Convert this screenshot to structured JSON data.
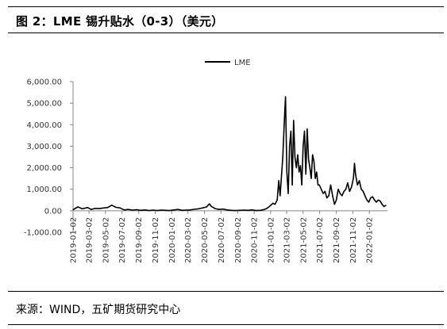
{
  "header": {
    "title": "图 2：LME 锡升贴水（0-3）（美元）"
  },
  "footer": {
    "source": "来源：WIND，五矿期货研究中心"
  },
  "chart_data": {
    "type": "line",
    "title": "",
    "xlabel": "",
    "ylabel": "",
    "ylim": [
      -1000,
      6000
    ],
    "ytick_labels": [
      "6,000.00",
      "5,000.00",
      "4,000.00",
      "3,000.00",
      "2,000.00",
      "1,000.00",
      "0.00",
      "-1,000.00"
    ],
    "ytick_values": [
      6000,
      5000,
      4000,
      3000,
      2000,
      1000,
      0,
      -1000
    ],
    "xtick_labels": [
      "2019-01-02",
      "2019-03-02",
      "2019-05-02",
      "2019-07-02",
      "2019-09-02",
      "2019-11-02",
      "2020-01-02",
      "2020-03-02",
      "2020-05-02",
      "2020-07-02",
      "2020-09-02",
      "2020-11-02",
      "2021-01-02",
      "2021-03-02",
      "2021-05-02",
      "2021-07-02",
      "2021-09-02",
      "2021-11-02",
      "2022-01-02"
    ],
    "legend": {
      "position": "top",
      "entries": [
        "LME"
      ]
    },
    "grid": false,
    "series": [
      {
        "name": "LME",
        "color": "#000000",
        "x": [
          "2019-01-02",
          "2019-01-20",
          "2019-02-05",
          "2019-02-25",
          "2019-03-10",
          "2019-03-25",
          "2019-04-10",
          "2019-04-25",
          "2019-05-10",
          "2019-05-25",
          "2019-06-10",
          "2019-06-25",
          "2019-07-10",
          "2019-07-25",
          "2019-08-10",
          "2019-08-25",
          "2019-09-10",
          "2019-09-25",
          "2019-10-10",
          "2019-10-25",
          "2019-11-10",
          "2019-11-25",
          "2019-12-10",
          "2019-12-25",
          "2020-01-10",
          "2020-01-25",
          "2020-02-10",
          "2020-02-25",
          "2020-03-10",
          "2020-03-25",
          "2020-04-10",
          "2020-04-25",
          "2020-05-10",
          "2020-05-20",
          "2020-05-28",
          "2020-06-10",
          "2020-06-25",
          "2020-07-10",
          "2020-07-25",
          "2020-08-10",
          "2020-08-25",
          "2020-09-10",
          "2020-09-25",
          "2020-10-10",
          "2020-10-25",
          "2020-11-10",
          "2020-11-25",
          "2020-12-10",
          "2020-12-20",
          "2021-01-02",
          "2021-01-10",
          "2021-01-18",
          "2021-01-26",
          "2021-02-01",
          "2021-02-06",
          "2021-02-11",
          "2021-02-16",
          "2021-02-21",
          "2021-02-26",
          "2021-03-03",
          "2021-03-08",
          "2021-03-13",
          "2021-03-18",
          "2021-03-23",
          "2021-03-28",
          "2021-04-02",
          "2021-04-07",
          "2021-04-12",
          "2021-04-17",
          "2021-04-22",
          "2021-04-27",
          "2021-05-02",
          "2021-05-07",
          "2021-05-12",
          "2021-05-17",
          "2021-05-22",
          "2021-05-27",
          "2021-06-01",
          "2021-06-06",
          "2021-06-11",
          "2021-06-16",
          "2021-06-21",
          "2021-06-26",
          "2021-07-01",
          "2021-07-08",
          "2021-07-15",
          "2021-07-22",
          "2021-07-29",
          "2021-08-05",
          "2021-08-12",
          "2021-08-19",
          "2021-08-26",
          "2021-09-02",
          "2021-09-09",
          "2021-09-16",
          "2021-09-23",
          "2021-09-30",
          "2021-10-07",
          "2021-10-14",
          "2021-10-21",
          "2021-10-28",
          "2021-11-04",
          "2021-11-08",
          "2021-11-12",
          "2021-11-19",
          "2021-11-26",
          "2021-12-03",
          "2021-12-10",
          "2021-12-17",
          "2021-12-24",
          "2021-12-31",
          "2022-01-07",
          "2022-01-14",
          "2022-01-21",
          "2022-01-28",
          "2022-02-04",
          "2022-02-11",
          "2022-02-18",
          "2022-02-25",
          "2022-03-04"
        ],
        "values": [
          50,
          180,
          90,
          150,
          60,
          110,
          100,
          130,
          150,
          260,
          160,
          130,
          40,
          60,
          30,
          50,
          20,
          40,
          10,
          30,
          10,
          30,
          20,
          10,
          40,
          60,
          20,
          30,
          40,
          70,
          90,
          130,
          180,
          320,
          200,
          100,
          60,
          80,
          40,
          20,
          10,
          20,
          30,
          20,
          40,
          10,
          20,
          60,
          120,
          250,
          350,
          300,
          500,
          1400,
          700,
          1600,
          2500,
          4000,
          5300,
          1800,
          800,
          3000,
          3700,
          1200,
          4200,
          2500,
          2000,
          2600,
          1800,
          2100,
          1200,
          3000,
          3700,
          1700,
          3800,
          2400,
          2000,
          1500,
          2600,
          2300,
          1500,
          1800,
          1200,
          1200,
          1000,
          800,
          900,
          600,
          700,
          1200,
          700,
          300,
          500,
          1000,
          800,
          700,
          900,
          1000,
          1300,
          900,
          1100,
          1500,
          2200,
          1700,
          1200,
          1400,
          1000,
          900,
          700,
          500,
          400,
          600,
          650,
          500,
          400,
          500,
          450,
          300,
          200,
          250
        ]
      }
    ]
  }
}
